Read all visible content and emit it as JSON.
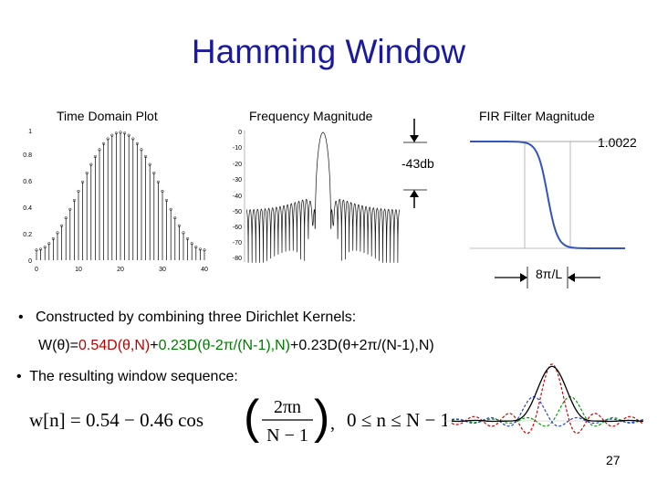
{
  "slide": {
    "title": "Hamming Window",
    "page_number": "27"
  },
  "plots": {
    "time_domain": {
      "caption": "Time Domain Plot",
      "x_ticks": [
        "0",
        "10",
        "20",
        "30",
        "40"
      ],
      "y_ticks": [
        "0",
        "0.2",
        "0.4",
        "0.6",
        "0.8",
        "1"
      ]
    },
    "frequency": {
      "caption": "Frequency Magnitude",
      "y_ticks": [
        "0",
        "-10",
        "-20",
        "-30",
        "-40",
        "-50",
        "-60",
        "-70",
        "-80"
      ],
      "sidelobe_label": "-43db"
    },
    "fir": {
      "caption": "FIR Filter Magnitude",
      "passband_label": "1.0022",
      "transition_label": "8π/L"
    }
  },
  "text": {
    "bullet1": "Constructed by combining three Dirichlet Kernels:",
    "formula": {
      "prefix": "W(θ)=",
      "term1": "0.54D(θ,N)",
      "plus1": "+",
      "term2": "0.23D(θ-2π/(N-1),N)",
      "plus2": "+",
      "term3": "0.23D(θ+2π/(N-1),N)"
    },
    "bullet2": "The resulting window sequence:",
    "equation": {
      "lhs": "w[n] = 0.54 − 0.46 cos",
      "numerator": "2πn",
      "denominator": "N − 1",
      "range": "0 ≤ n ≤ N − 1"
    }
  },
  "colors": {
    "title": "#1a1aa0",
    "red_term": "#c00000",
    "green_term": "#007a00",
    "fir_curve": "#3355bb"
  }
}
